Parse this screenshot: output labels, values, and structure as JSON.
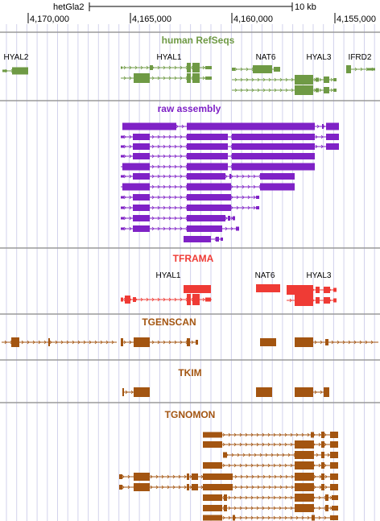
{
  "ruler": {
    "assembly": "hetGla2",
    "scale_label": "10 kb",
    "ticks": [
      "4,170,000",
      "4,165,000",
      "4,160,000",
      "4,155,000"
    ]
  },
  "colors": {
    "refseq": "#6f9a45",
    "raw": "#7f22c6",
    "trama": "#ef3b35",
    "orange": "#a35511",
    "grid": "#d2d2ec",
    "divider": "#9a9a9a"
  },
  "tracks": {
    "refseq": {
      "title": "human RefSeqs",
      "gene_labels": [
        "HYAL2",
        "HYAL1",
        "NAT6",
        "HYAL3",
        "IFRD2"
      ]
    },
    "raw": {
      "title": "raw assembly"
    },
    "trama": {
      "title": "TFRAMA",
      "gene_labels": [
        "HYAL1",
        "NAT6",
        "HYAL3"
      ]
    },
    "genscan": {
      "title": "TGENSCAN"
    },
    "kim": {
      "title": "TKIM"
    },
    "gnomon": {
      "title": "TGNOMON"
    }
  }
}
